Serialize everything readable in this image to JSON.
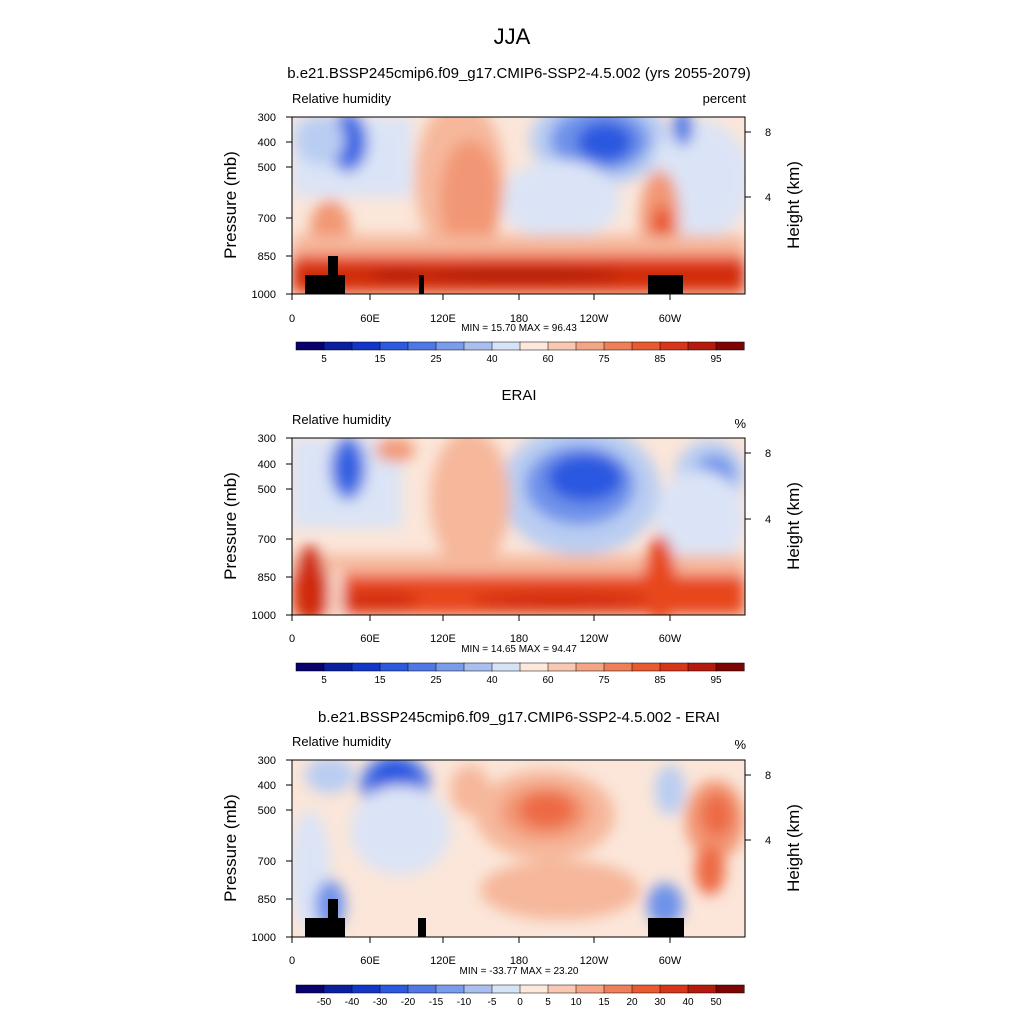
{
  "page_title": "JJA",
  "chart_data": [
    {
      "type": "heatmap",
      "title": "b.e21.BSSP245cmip6.f09_g17.CMIP6-SSP2-4.5.002 (yrs 2055-2079)",
      "left_label": "Relative humidity",
      "right_label": "percent",
      "ylabel": "Pressure (mb)",
      "ylabel_right": "Height (km)",
      "x_ticks": [
        "0",
        "60E",
        "120E",
        "180",
        "120W",
        "60W"
      ],
      "y_ticks": [
        "300",
        "400",
        "500",
        "700",
        "850",
        "1000"
      ],
      "y_ticks_right": [
        "8",
        "4"
      ],
      "min_label": "MIN =  15.70  MAX =  96.43",
      "colorbar_labels": [
        "5",
        "15",
        "25",
        "40",
        "60",
        "75",
        "85",
        "95"
      ]
    },
    {
      "type": "heatmap",
      "title": "ERAI",
      "left_label": "Relative humidity",
      "right_label": "%",
      "ylabel": "Pressure (mb)",
      "ylabel_right": "Height (km)",
      "x_ticks": [
        "0",
        "60E",
        "120E",
        "180",
        "120W",
        "60W"
      ],
      "y_ticks": [
        "300",
        "400",
        "500",
        "700",
        "850",
        "1000"
      ],
      "y_ticks_right": [
        "8",
        "4"
      ],
      "min_label": "MIN =  14.65  MAX =  94.47",
      "colorbar_labels": [
        "5",
        "15",
        "25",
        "40",
        "60",
        "75",
        "85",
        "95"
      ]
    },
    {
      "type": "heatmap",
      "title": "b.e21.BSSP245cmip6.f09_g17.CMIP6-SSP2-4.5.002 - ERAI",
      "left_label": "Relative humidity",
      "right_label": "%",
      "ylabel": "Pressure (mb)",
      "ylabel_right": "Height (km)",
      "x_ticks": [
        "0",
        "60E",
        "120E",
        "180",
        "120W",
        "60W"
      ],
      "y_ticks": [
        "300",
        "400",
        "500",
        "700",
        "850",
        "1000"
      ],
      "y_ticks_right": [
        "8",
        "4"
      ],
      "min_label": "MIN = -33.77  MAX =  23.20",
      "colorbar_labels": [
        "-50",
        "-40",
        "-30",
        "-20",
        "-15",
        "-10",
        "-5",
        "0",
        "5",
        "10",
        "15",
        "20",
        "30",
        "40",
        "50"
      ]
    }
  ],
  "colors": {
    "deep_blue": "#00008c",
    "blue": "#2b59e0",
    "light_blue": "#b9cdf2",
    "white": "#fdf3ea",
    "light_red": "#f6b79b",
    "red": "#e8471f",
    "deep_red": "#8b0000"
  }
}
